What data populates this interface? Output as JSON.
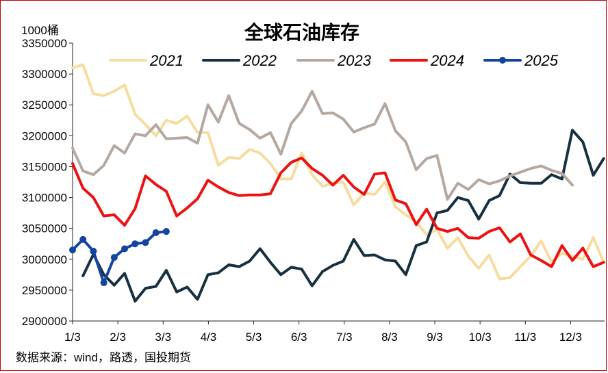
{
  "chart_data": {
    "type": "line",
    "title": "全球石油库存",
    "unit_label": "1000桶",
    "source": "数据来源：wind，路透，国投期货",
    "ylim": [
      2900000,
      3350000
    ],
    "y_ticks": [
      2900000,
      2950000,
      3000000,
      3050000,
      3100000,
      3150000,
      3200000,
      3250000,
      3300000,
      3350000
    ],
    "y_tick_labels": [
      "2900000",
      "2950000",
      "3000000",
      "3050000",
      "3100000",
      "3150000",
      "3200000",
      "3250000",
      "3300000",
      "3350000"
    ],
    "x_ticks": [
      0,
      1,
      2,
      3,
      4,
      5,
      6,
      7,
      8,
      9,
      10,
      11
    ],
    "x_tick_labels": [
      "1/3",
      "2/3",
      "3/3",
      "4/3",
      "5/3",
      "6/3",
      "7/3",
      "8/3",
      "9/3",
      "10/3",
      "11/3",
      "12/3"
    ],
    "xlim": [
      0,
      11.75
    ],
    "grid": false,
    "legend_position": "top",
    "series": [
      {
        "name": "2021",
        "color": "#f7dca0",
        "markers": false,
        "x": [
          0,
          0.23,
          0.46,
          0.69,
          0.92,
          1.15,
          1.38,
          1.61,
          1.84,
          2.07,
          2.3,
          2.53,
          2.76,
          2.99,
          3.22,
          3.45,
          3.68,
          3.91,
          4.14,
          4.37,
          4.6,
          4.83,
          5.06,
          5.29,
          5.52,
          5.75,
          5.98,
          6.21,
          6.44,
          6.67,
          6.9,
          7.13,
          7.36,
          7.59,
          7.82,
          8.05,
          8.28,
          8.51,
          8.74,
          8.97,
          9.2,
          9.43,
          9.66,
          9.89,
          10.12,
          10.35,
          10.58,
          10.81,
          11.04,
          11.27,
          11.5,
          11.73
        ],
        "values": [
          3310000,
          3315000,
          3268000,
          3265000,
          3272000,
          3282000,
          3235000,
          3218000,
          3200000,
          3225000,
          3220000,
          3232000,
          3205000,
          3205000,
          3152000,
          3165000,
          3163000,
          3178000,
          3172000,
          3155000,
          3130000,
          3130000,
          3172000,
          3137000,
          3118000,
          3123000,
          3125000,
          3088000,
          3107000,
          3105000,
          3125000,
          3085000,
          3072000,
          3060000,
          3040000,
          3048000,
          3018000,
          3035000,
          3005000,
          2985000,
          3007000,
          2968000,
          2970000,
          2988000,
          3005000,
          3030000,
          2995000,
          3010000,
          3005000,
          3000000,
          3035000,
          2995000
        ]
      },
      {
        "name": "2022",
        "color": "#17303f",
        "markers": false,
        "x": [
          0.23,
          0.46,
          0.69,
          0.92,
          1.15,
          1.38,
          1.61,
          1.84,
          2.07,
          2.3,
          2.53,
          2.76,
          2.99,
          3.22,
          3.45,
          3.68,
          3.91,
          4.14,
          4.37,
          4.6,
          4.83,
          5.06,
          5.29,
          5.52,
          5.75,
          5.98,
          6.21,
          6.44,
          6.67,
          6.9,
          7.13,
          7.36,
          7.59,
          7.82,
          8.05,
          8.28,
          8.51,
          8.74,
          8.97,
          9.2,
          9.43,
          9.66,
          9.89,
          10.12,
          10.35,
          10.58,
          10.81,
          11.04,
          11.27,
          11.5,
          11.73
        ],
        "values": [
          2973000,
          3008000,
          2975000,
          2958000,
          2977000,
          2932000,
          2953000,
          2956000,
          2982000,
          2947000,
          2955000,
          2935000,
          2975000,
          2978000,
          2991000,
          2988000,
          2997000,
          3017000,
          2995000,
          2975000,
          2987000,
          2984000,
          2957000,
          2980000,
          2990000,
          2997000,
          3032000,
          3006000,
          3007000,
          2999000,
          2997000,
          2975000,
          3022000,
          3028000,
          3075000,
          3079000,
          3100000,
          3095000,
          3065000,
          3095000,
          3103000,
          3138000,
          3124000,
          3123000,
          3123000,
          3137000,
          3130000,
          3209000,
          3190000,
          3136000,
          3163000
        ]
      },
      {
        "name": "2023",
        "color": "#b5a8a0",
        "markers": false,
        "x": [
          0,
          0.23,
          0.46,
          0.69,
          0.92,
          1.15,
          1.38,
          1.61,
          1.84,
          2.07,
          2.3,
          2.53,
          2.76,
          2.99,
          3.22,
          3.45,
          3.68,
          3.91,
          4.14,
          4.37,
          4.6,
          4.83,
          5.06,
          5.29,
          5.52,
          5.75,
          5.98,
          6.21,
          6.44,
          6.67,
          6.9,
          7.13,
          7.36,
          7.59,
          7.82,
          8.05,
          8.28,
          8.51,
          8.74,
          8.97,
          9.2,
          9.43,
          9.66,
          9.89,
          10.12,
          10.35,
          10.58,
          10.81,
          11.04
        ],
        "values": [
          3180000,
          3143000,
          3137000,
          3152000,
          3184000,
          3172000,
          3203000,
          3200000,
          3218000,
          3195000,
          3196000,
          3197000,
          3188000,
          3250000,
          3222000,
          3265000,
          3220000,
          3210000,
          3196000,
          3205000,
          3170000,
          3220000,
          3240000,
          3272000,
          3236000,
          3237000,
          3227000,
          3206000,
          3213000,
          3219000,
          3252000,
          3208000,
          3190000,
          3145000,
          3163000,
          3168000,
          3097000,
          3123000,
          3113000,
          3129000,
          3122000,
          3127000,
          3135000,
          3141000,
          3147000,
          3151000,
          3144000,
          3139000,
          3120000
        ]
      },
      {
        "name": "2024",
        "color": "#ee1111",
        "markers": false,
        "x": [
          0,
          0.23,
          0.46,
          0.69,
          0.92,
          1.15,
          1.38,
          1.61,
          1.84,
          2.07,
          2.3,
          2.53,
          2.76,
          2.99,
          3.22,
          3.45,
          3.68,
          3.91,
          4.14,
          4.37,
          4.6,
          4.83,
          5.06,
          5.29,
          5.52,
          5.75,
          5.98,
          6.21,
          6.44,
          6.67,
          6.9,
          7.13,
          7.36,
          7.59,
          7.82,
          8.05,
          8.28,
          8.51,
          8.74,
          8.97,
          9.2,
          9.43,
          9.66,
          9.89,
          10.12,
          10.35,
          10.58,
          10.81,
          11.04,
          11.27,
          11.5,
          11.73
        ],
        "values": [
          3155000,
          3115000,
          3100000,
          3070000,
          3072000,
          3055000,
          3082000,
          3135000,
          3121000,
          3110000,
          3070000,
          3083000,
          3098000,
          3128000,
          3117000,
          3108000,
          3103000,
          3104000,
          3104000,
          3106000,
          3140000,
          3157000,
          3164000,
          3147000,
          3136000,
          3120000,
          3136000,
          3117000,
          3105000,
          3138000,
          3140000,
          3096000,
          3090000,
          3056000,
          3081000,
          3050000,
          3045000,
          3050000,
          3035000,
          3034000,
          3045000,
          3051000,
          3028000,
          3041000,
          3007000,
          2998000,
          2988000,
          3022000,
          2998000,
          3018000,
          2988000,
          2995000
        ]
      },
      {
        "name": "2025",
        "color": "#1244a0",
        "markers": true,
        "x": [
          0,
          0.23,
          0.46,
          0.69,
          0.92,
          1.15,
          1.38,
          1.61,
          1.84,
          2.07
        ],
        "values": [
          3015000,
          3032000,
          3013000,
          2962000,
          3003000,
          3017000,
          3025000,
          3027000,
          3043000,
          3045000
        ]
      }
    ]
  }
}
